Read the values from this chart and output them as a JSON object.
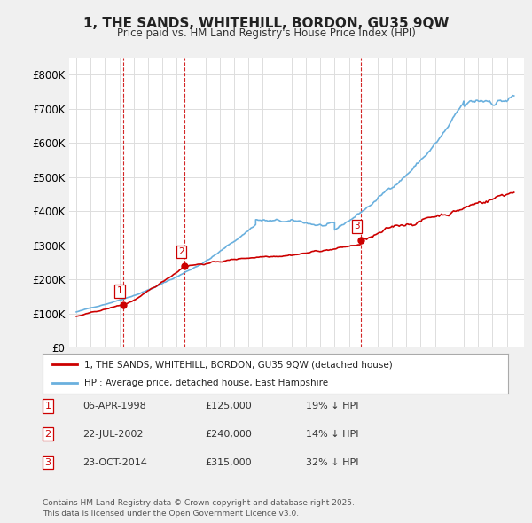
{
  "title": "1, THE SANDS, WHITEHILL, BORDON, GU35 9QW",
  "subtitle": "Price paid vs. HM Land Registry's House Price Index (HPI)",
  "ylim": [
    0,
    850000
  ],
  "yticks": [
    0,
    100000,
    200000,
    300000,
    400000,
    500000,
    600000,
    700000,
    800000
  ],
  "ytick_labels": [
    "£0",
    "£100K",
    "£200K",
    "£300K",
    "£400K",
    "£500K",
    "£600K",
    "£700K",
    "£800K"
  ],
  "background_color": "#f0f0f0",
  "plot_bg_color": "#ffffff",
  "hpi_color": "#6ab0de",
  "price_color": "#cc0000",
  "vline_color": "#cc0000",
  "transactions": [
    {
      "num": 1,
      "date_label": "06-APR-1998",
      "x": 1998.27,
      "price": 125000,
      "hpi_note": "19% ↓ HPI"
    },
    {
      "num": 2,
      "date_label": "22-JUL-2002",
      "x": 2002.55,
      "price": 240000,
      "hpi_note": "14% ↓ HPI"
    },
    {
      "num": 3,
      "date_label": "23-OCT-2014",
      "x": 2014.81,
      "price": 315000,
      "hpi_note": "32% ↓ HPI"
    }
  ],
  "legend_label_price": "1, THE SANDS, WHITEHILL, BORDON, GU35 9QW (detached house)",
  "legend_label_hpi": "HPI: Average price, detached house, East Hampshire",
  "footnote": "Contains HM Land Registry data © Crown copyright and database right 2025.\nThis data is licensed under the Open Government Licence v3.0.",
  "table_rows": [
    [
      "1",
      "06-APR-1998",
      "£125,000",
      "19% ↓ HPI"
    ],
    [
      "2",
      "22-JUL-2002",
      "£240,000",
      "14% ↓ HPI"
    ],
    [
      "3",
      "23-OCT-2014",
      "£315,000",
      "32% ↓ HPI"
    ]
  ]
}
